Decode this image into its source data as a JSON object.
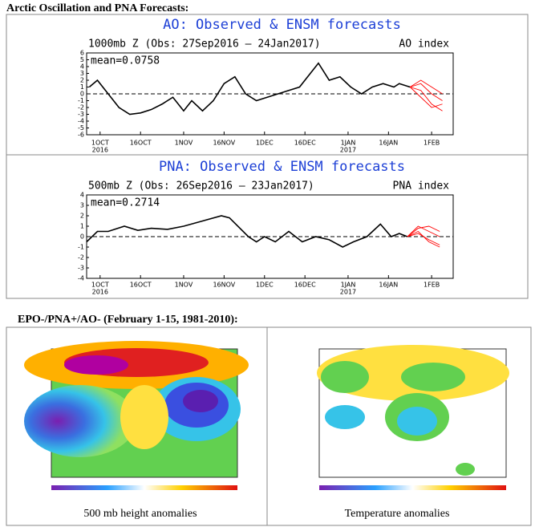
{
  "headings": [
    "Arctic Oscillation and PNA Forecasts:",
    "EPO-/PNA+/AO- (February 1-15, 1981-2010):"
  ],
  "maps": [
    {
      "caption": "500 mb height anomalies"
    },
    {
      "caption": "Temperature anomalies"
    }
  ],
  "chart_data": [
    {
      "type": "line",
      "title": "AO: Observed & ENSM forecasts",
      "subtitle": "1000mb Z (Obs: 27Sep2016 – 24Jan2017)",
      "index_label": "AO index",
      "mean_label": "mean=0.0758",
      "x": [
        "2016-09-27",
        "2016-09-30",
        "2016-10-04",
        "2016-10-08",
        "2016-10-12",
        "2016-10-16",
        "2016-10-20",
        "2016-10-24",
        "2016-10-28",
        "2016-11-01",
        "2016-11-04",
        "2016-11-08",
        "2016-11-12",
        "2016-11-16",
        "2016-11-20",
        "2016-11-24",
        "2016-11-28",
        "2016-12-02",
        "2016-12-06",
        "2016-12-10",
        "2016-12-14",
        "2016-12-18",
        "2016-12-21",
        "2016-12-25",
        "2016-12-29",
        "2017-01-02",
        "2017-01-06",
        "2017-01-10",
        "2017-01-14",
        "2017-01-18",
        "2017-01-20",
        "2017-01-24",
        "2017-01-28",
        "2017-02-01",
        "2017-02-05"
      ],
      "series": [
        {
          "color": "#000000",
          "values": [
            1,
            2,
            0,
            -2,
            -3,
            -2.8,
            -2.3,
            -1.5,
            -0.5,
            -2.5,
            -1,
            -2.5,
            -1,
            1.5,
            2.5,
            0,
            -1,
            -0.5,
            0,
            0.5,
            1,
            3,
            4.5,
            2,
            2.5,
            1,
            0,
            1,
            1.5,
            1,
            1.5,
            1,
            null,
            null,
            null
          ]
        },
        {
          "color": "#ff0000",
          "values": [
            null,
            null,
            null,
            null,
            null,
            null,
            null,
            null,
            null,
            null,
            null,
            null,
            null,
            null,
            null,
            null,
            null,
            null,
            null,
            null,
            null,
            null,
            null,
            null,
            null,
            null,
            null,
            null,
            null,
            null,
            null,
            1,
            1.5,
            0,
            -1
          ]
        },
        {
          "color": "#ff0000",
          "values": [
            null,
            null,
            null,
            null,
            null,
            null,
            null,
            null,
            null,
            null,
            null,
            null,
            null,
            null,
            null,
            null,
            null,
            null,
            null,
            null,
            null,
            null,
            null,
            null,
            null,
            null,
            null,
            null,
            null,
            null,
            null,
            1,
            0.5,
            -1.5,
            -2.5
          ]
        },
        {
          "color": "#ff0000",
          "values": [
            null,
            null,
            null,
            null,
            null,
            null,
            null,
            null,
            null,
            null,
            null,
            null,
            null,
            null,
            null,
            null,
            null,
            null,
            null,
            null,
            null,
            null,
            null,
            null,
            null,
            null,
            null,
            null,
            null,
            null,
            null,
            1,
            2,
            1,
            0
          ]
        },
        {
          "color": "#ff0000",
          "values": [
            null,
            null,
            null,
            null,
            null,
            null,
            null,
            null,
            null,
            null,
            null,
            null,
            null,
            null,
            null,
            null,
            null,
            null,
            null,
            null,
            null,
            null,
            null,
            null,
            null,
            null,
            null,
            null,
            null,
            null,
            null,
            1,
            -0.5,
            -2,
            -1.5
          ]
        }
      ],
      "xlim": [
        "2016-09-26",
        "2017-02-09"
      ],
      "xticks": [
        {
          "value": "2016-10-01",
          "label": "1OCT"
        },
        {
          "value": "2016-10-16",
          "label": "16OCT"
        },
        {
          "value": "2016-11-01",
          "label": "1NOV"
        },
        {
          "value": "2016-11-16",
          "label": "16NOV"
        },
        {
          "value": "2016-12-01",
          "label": "1DEC"
        },
        {
          "value": "2016-12-16",
          "label": "16DEC"
        },
        {
          "value": "2017-01-01",
          "label": "1JAN"
        },
        {
          "value": "2017-01-16",
          "label": "16JAN"
        },
        {
          "value": "2017-02-01",
          "label": "1FEB"
        }
      ],
      "xtick_years": [
        {
          "value": "2016-10-01",
          "label": "2016"
        },
        {
          "value": "2017-01-01",
          "label": "2017"
        }
      ],
      "ylim": [
        -6,
        6
      ],
      "yticks": [
        -6,
        -5,
        -4,
        -3,
        -2,
        -1,
        0,
        1,
        2,
        3,
        4,
        5,
        6
      ],
      "reference_line": 0
    },
    {
      "type": "line",
      "title": "PNA: Observed & ENSM forecasts",
      "subtitle": "500mb Z (Obs: 26Sep2016 – 23Jan2017)",
      "index_label": "PNA index",
      "mean_label": "mean=0.2714",
      "x": [
        "2016-09-26",
        "2016-09-30",
        "2016-10-04",
        "2016-10-10",
        "2016-10-15",
        "2016-10-20",
        "2016-10-26",
        "2016-11-01",
        "2016-11-08",
        "2016-11-15",
        "2016-11-18",
        "2016-11-25",
        "2016-11-28",
        "2016-12-01",
        "2016-12-05",
        "2016-12-10",
        "2016-12-15",
        "2016-12-20",
        "2016-12-25",
        "2016-12-30",
        "2017-01-03",
        "2017-01-08",
        "2017-01-13",
        "2017-01-17",
        "2017-01-20",
        "2017-01-23",
        "2017-01-27",
        "2017-01-31",
        "2017-02-04"
      ],
      "series": [
        {
          "color": "#000000",
          "values": [
            -0.5,
            0.5,
            0.5,
            1,
            0.6,
            0.8,
            0.7,
            1,
            1.5,
            2,
            1.8,
            0,
            -0.5,
            0,
            -0.5,
            0.5,
            -0.5,
            0,
            -0.3,
            -1,
            -0.5,
            0,
            1.2,
            0,
            0.3,
            0,
            null,
            null,
            null
          ]
        },
        {
          "color": "#ff0000",
          "values": [
            null,
            null,
            null,
            null,
            null,
            null,
            null,
            null,
            null,
            null,
            null,
            null,
            null,
            null,
            null,
            null,
            null,
            null,
            null,
            null,
            null,
            null,
            null,
            null,
            null,
            0,
            0.8,
            1,
            0.5
          ]
        },
        {
          "color": "#ff0000",
          "values": [
            null,
            null,
            null,
            null,
            null,
            null,
            null,
            null,
            null,
            null,
            null,
            null,
            null,
            null,
            null,
            null,
            null,
            null,
            null,
            null,
            null,
            null,
            null,
            null,
            null,
            0,
            0.5,
            -0.5,
            -1
          ]
        },
        {
          "color": "#ff0000",
          "values": [
            null,
            null,
            null,
            null,
            null,
            null,
            null,
            null,
            null,
            null,
            null,
            null,
            null,
            null,
            null,
            null,
            null,
            null,
            null,
            null,
            null,
            null,
            null,
            null,
            null,
            0,
            1,
            0.5,
            0
          ]
        },
        {
          "color": "#ff0000",
          "values": [
            null,
            null,
            null,
            null,
            null,
            null,
            null,
            null,
            null,
            null,
            null,
            null,
            null,
            null,
            null,
            null,
            null,
            null,
            null,
            null,
            null,
            null,
            null,
            null,
            null,
            0,
            0.3,
            -0.3,
            -0.8
          ]
        }
      ],
      "xlim": [
        "2016-09-26",
        "2017-02-09"
      ],
      "xticks": [
        {
          "value": "2016-10-01",
          "label": "1OCT"
        },
        {
          "value": "2016-10-16",
          "label": "16OCT"
        },
        {
          "value": "2016-11-01",
          "label": "1NOV"
        },
        {
          "value": "2016-11-16",
          "label": "16NOV"
        },
        {
          "value": "2016-12-01",
          "label": "1DEC"
        },
        {
          "value": "2016-12-16",
          "label": "16DEC"
        },
        {
          "value": "2017-01-01",
          "label": "1JAN"
        },
        {
          "value": "2017-01-16",
          "label": "16JAN"
        },
        {
          "value": "2017-02-01",
          "label": "1FEB"
        }
      ],
      "xtick_years": [
        {
          "value": "2016-10-01",
          "label": "2016"
        },
        {
          "value": "2017-01-01",
          "label": "2017"
        }
      ],
      "ylim": [
        -4,
        4
      ],
      "yticks": [
        -4,
        -3,
        -2,
        -1,
        0,
        1,
        2,
        3,
        4
      ],
      "reference_line": 0
    }
  ]
}
